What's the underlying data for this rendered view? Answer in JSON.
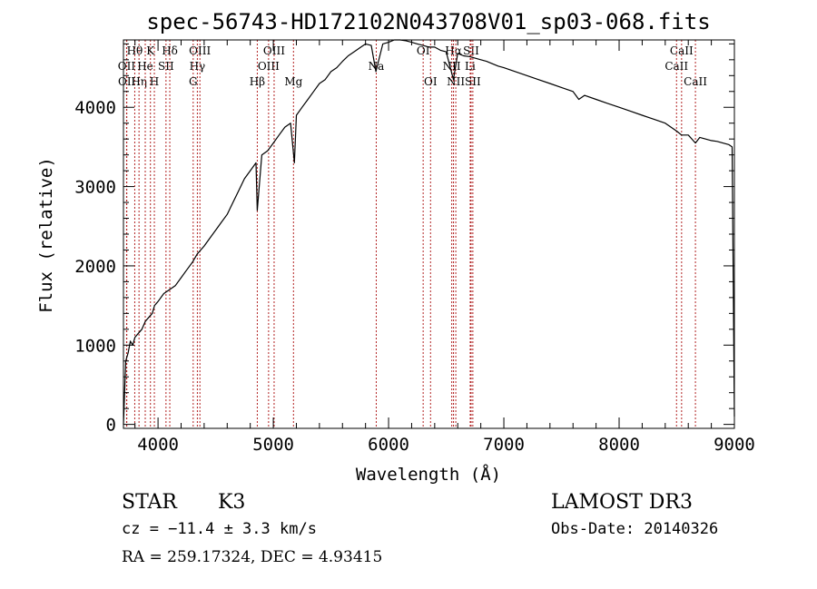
{
  "chart_data": {
    "type": "line",
    "title": "spec-56743-HD172102N043708V01_sp03-068.fits",
    "xlabel": "Wavelength (Å)",
    "ylabel": "Flux (relative)",
    "xlim": [
      3700,
      9000
    ],
    "ylim": [
      -50,
      4850
    ],
    "x_ticks": [
      "4000",
      "5000",
      "6000",
      "7000",
      "8000",
      "9000"
    ],
    "y_ticks": [
      "0",
      "1000",
      "2000",
      "3000",
      "4000"
    ],
    "grid": false,
    "series": [
      {
        "x": [
          3700,
          3720,
          3740,
          3760,
          3780,
          3800,
          3830,
          3860,
          3890,
          3920,
          3950,
          3970,
          4000,
          4050,
          4100,
          4150,
          4200,
          4250,
          4300,
          4340,
          4400,
          4450,
          4500,
          4550,
          4600,
          4650,
          4700,
          4750,
          4800,
          4850,
          4861,
          4900,
          4950,
          5000,
          5050,
          5100,
          5150,
          5183,
          5200,
          5250,
          5300,
          5350,
          5400,
          5450,
          5500,
          5550,
          5600,
          5650,
          5700,
          5750,
          5800,
          5850,
          5890,
          5950,
          6000,
          6050,
          6100,
          6150,
          6200,
          6250,
          6300,
          6350,
          6400,
          6450,
          6500,
          6563,
          6600,
          6650,
          6700,
          6750,
          6800,
          6850,
          6900,
          6950,
          7000,
          7100,
          7200,
          7300,
          7400,
          7500,
          7600,
          7650,
          7700,
          7800,
          7900,
          8000,
          8100,
          8200,
          8300,
          8400,
          8498,
          8542,
          8600,
          8662,
          8700,
          8750,
          8800,
          8850,
          8900,
          8950,
          8980,
          9000
        ],
        "y": [
          0,
          800,
          900,
          1050,
          1000,
          1100,
          1150,
          1200,
          1300,
          1350,
          1400,
          1500,
          1550,
          1650,
          1700,
          1750,
          1850,
          1950,
          2050,
          2150,
          2250,
          2350,
          2450,
          2550,
          2650,
          2800,
          2950,
          3100,
          3200,
          3300,
          2700,
          3400,
          3450,
          3550,
          3650,
          3750,
          3800,
          3300,
          3900,
          4000,
          4100,
          4200,
          4300,
          4350,
          4450,
          4500,
          4580,
          4650,
          4700,
          4750,
          4800,
          4780,
          4450,
          4800,
          4820,
          4850,
          4850,
          4840,
          4820,
          4800,
          4780,
          4760,
          4760,
          4720,
          4700,
          4350,
          4680,
          4650,
          4640,
          4620,
          4600,
          4580,
          4550,
          4520,
          4500,
          4450,
          4400,
          4350,
          4300,
          4250,
          4200,
          4100,
          4150,
          4100,
          4050,
          4000,
          3950,
          3900,
          3850,
          3800,
          3700,
          3650,
          3650,
          3550,
          3620,
          3600,
          3580,
          3570,
          3550,
          3530,
          3500,
          100
        ]
      }
    ],
    "spectral_lines": [
      {
        "label": "Hθ",
        "wl": 3798,
        "row": 1
      },
      {
        "label": "OII",
        "wl": 3727,
        "row": 2
      },
      {
        "label": "OII",
        "wl": 3729,
        "row": 3
      },
      {
        "label": "Hη",
        "wl": 3835,
        "row": 3
      },
      {
        "label": "He",
        "wl": 3889,
        "row": 2
      },
      {
        "label": "K",
        "wl": 3934,
        "row": 1
      },
      {
        "label": "H",
        "wl": 3968,
        "row": 3
      },
      {
        "label": "SII",
        "wl": 4069,
        "row": 2
      },
      {
        "label": "Hδ",
        "wl": 4102,
        "row": 1
      },
      {
        "label": "OIII",
        "wl": 4363,
        "row": 1
      },
      {
        "label": "Hγ",
        "wl": 4341,
        "row": 2
      },
      {
        "label": "G",
        "wl": 4305,
        "row": 3
      },
      {
        "label": "Hβ",
        "wl": 4861,
        "row": 3
      },
      {
        "label": "OIII",
        "wl": 5007,
        "row": 1
      },
      {
        "label": "OIII",
        "wl": 4959,
        "row": 2
      },
      {
        "label": "Mg",
        "wl": 5175,
        "row": 3
      },
      {
        "label": "Na",
        "wl": 5893,
        "row": 2
      },
      {
        "label": "OI",
        "wl": 6300,
        "row": 1
      },
      {
        "label": "OI",
        "wl": 6364,
        "row": 3
      },
      {
        "label": "Hα",
        "wl": 6563,
        "row": 1
      },
      {
        "label": "NII",
        "wl": 6548,
        "row": 2
      },
      {
        "label": "NII",
        "wl": 6583,
        "row": 3
      },
      {
        "label": "SII",
        "wl": 6716,
        "row": 1
      },
      {
        "label": "Li",
        "wl": 6708,
        "row": 2
      },
      {
        "label": "SII",
        "wl": 6731,
        "row": 3
      },
      {
        "label": "CaII",
        "wl": 8542,
        "row": 1
      },
      {
        "label": "CaII",
        "wl": 8498,
        "row": 2
      },
      {
        "label": "CaII",
        "wl": 8662,
        "row": 3
      }
    ],
    "line_color": "#000000",
    "marker_color": "#b22222"
  },
  "footer": {
    "object_type": "STAR",
    "subclass": "K3",
    "survey": "LAMOST DR3",
    "redshift": "cz = −11.4 ± 3.3 km/s",
    "obs_date": "Obs-Date: 20140326",
    "coords": "RA = 259.17324, DEC =   4.93415"
  }
}
